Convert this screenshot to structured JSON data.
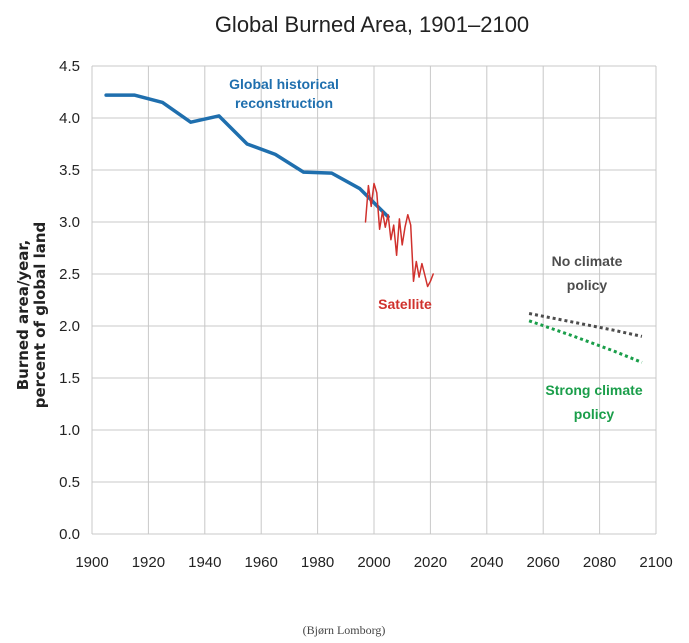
{
  "chart_data": {
    "type": "line",
    "title": "Global Burned Area, 1901–2100",
    "ylabel_line1": "Burned area/year,",
    "ylabel_line2": "percent of global land",
    "xlabel": "",
    "xlim": [
      1900,
      2100
    ],
    "ylim": [
      0.0,
      4.5
    ],
    "x_ticks": [
      "1900",
      "1920",
      "1940",
      "1960",
      "1980",
      "2000",
      "2020",
      "2040",
      "2060",
      "2080",
      "2100"
    ],
    "y_ticks": [
      "0.0",
      "0.5",
      "1.0",
      "1.5",
      "2.0",
      "2.5",
      "3.0",
      "3.5",
      "4.0",
      "4.5"
    ],
    "grid": true,
    "legend": "none",
    "series": [
      {
        "name": "Global historical reconstruction",
        "color": "#1f6fae",
        "style": "solid-thick",
        "points": [
          [
            1905,
            4.22
          ],
          [
            1915,
            4.22
          ],
          [
            1925,
            4.15
          ],
          [
            1935,
            3.96
          ],
          [
            1945,
            4.02
          ],
          [
            1955,
            3.75
          ],
          [
            1965,
            3.65
          ],
          [
            1975,
            3.48
          ],
          [
            1985,
            3.47
          ],
          [
            1995,
            3.32
          ],
          [
            2005,
            3.05
          ]
        ]
      },
      {
        "name": "Satellite",
        "color": "#d0312d",
        "style": "solid-thin",
        "points": [
          [
            1997,
            3.0
          ],
          [
            1998,
            3.35
          ],
          [
            1999,
            3.15
          ],
          [
            2000,
            3.37
          ],
          [
            2001,
            3.28
          ],
          [
            2002,
            2.93
          ],
          [
            2003,
            3.1
          ],
          [
            2004,
            2.95
          ],
          [
            2005,
            3.07
          ],
          [
            2006,
            2.83
          ],
          [
            2007,
            2.97
          ],
          [
            2008,
            2.68
          ],
          [
            2009,
            3.03
          ],
          [
            2010,
            2.78
          ],
          [
            2011,
            2.95
          ],
          [
            2012,
            3.07
          ],
          [
            2013,
            2.97
          ],
          [
            2014,
            2.43
          ],
          [
            2015,
            2.62
          ],
          [
            2016,
            2.47
          ],
          [
            2017,
            2.6
          ],
          [
            2018,
            2.49
          ],
          [
            2019,
            2.38
          ],
          [
            2020,
            2.43
          ],
          [
            2021,
            2.5
          ]
        ]
      },
      {
        "name": "No climate policy",
        "color": "#4d4d4d",
        "style": "dotted",
        "points": [
          [
            2055,
            2.12
          ],
          [
            2070,
            2.04
          ],
          [
            2085,
            1.96
          ],
          [
            2095,
            1.9
          ]
        ]
      },
      {
        "name": "Strong climate policy",
        "color": "#1a9e4a",
        "style": "dotted",
        "points": [
          [
            2055,
            2.05
          ],
          [
            2070,
            1.91
          ],
          [
            2085,
            1.76
          ],
          [
            2095,
            1.65
          ]
        ]
      }
    ],
    "annotations": [
      {
        "id": "hist",
        "line1": "Global historical",
        "line2": "reconstruction",
        "color": "#1f6fae"
      },
      {
        "id": "sat",
        "line1": "Satellite",
        "line2": "",
        "color": "#d0312d"
      },
      {
        "id": "nopol",
        "line1": "No climate",
        "line2": "policy",
        "color": "#4d4d4d"
      },
      {
        "id": "strong",
        "line1": "Strong climate",
        "line2": "policy",
        "color": "#1a9e4a"
      }
    ],
    "credit": "(Bjørn Lomborg)"
  }
}
